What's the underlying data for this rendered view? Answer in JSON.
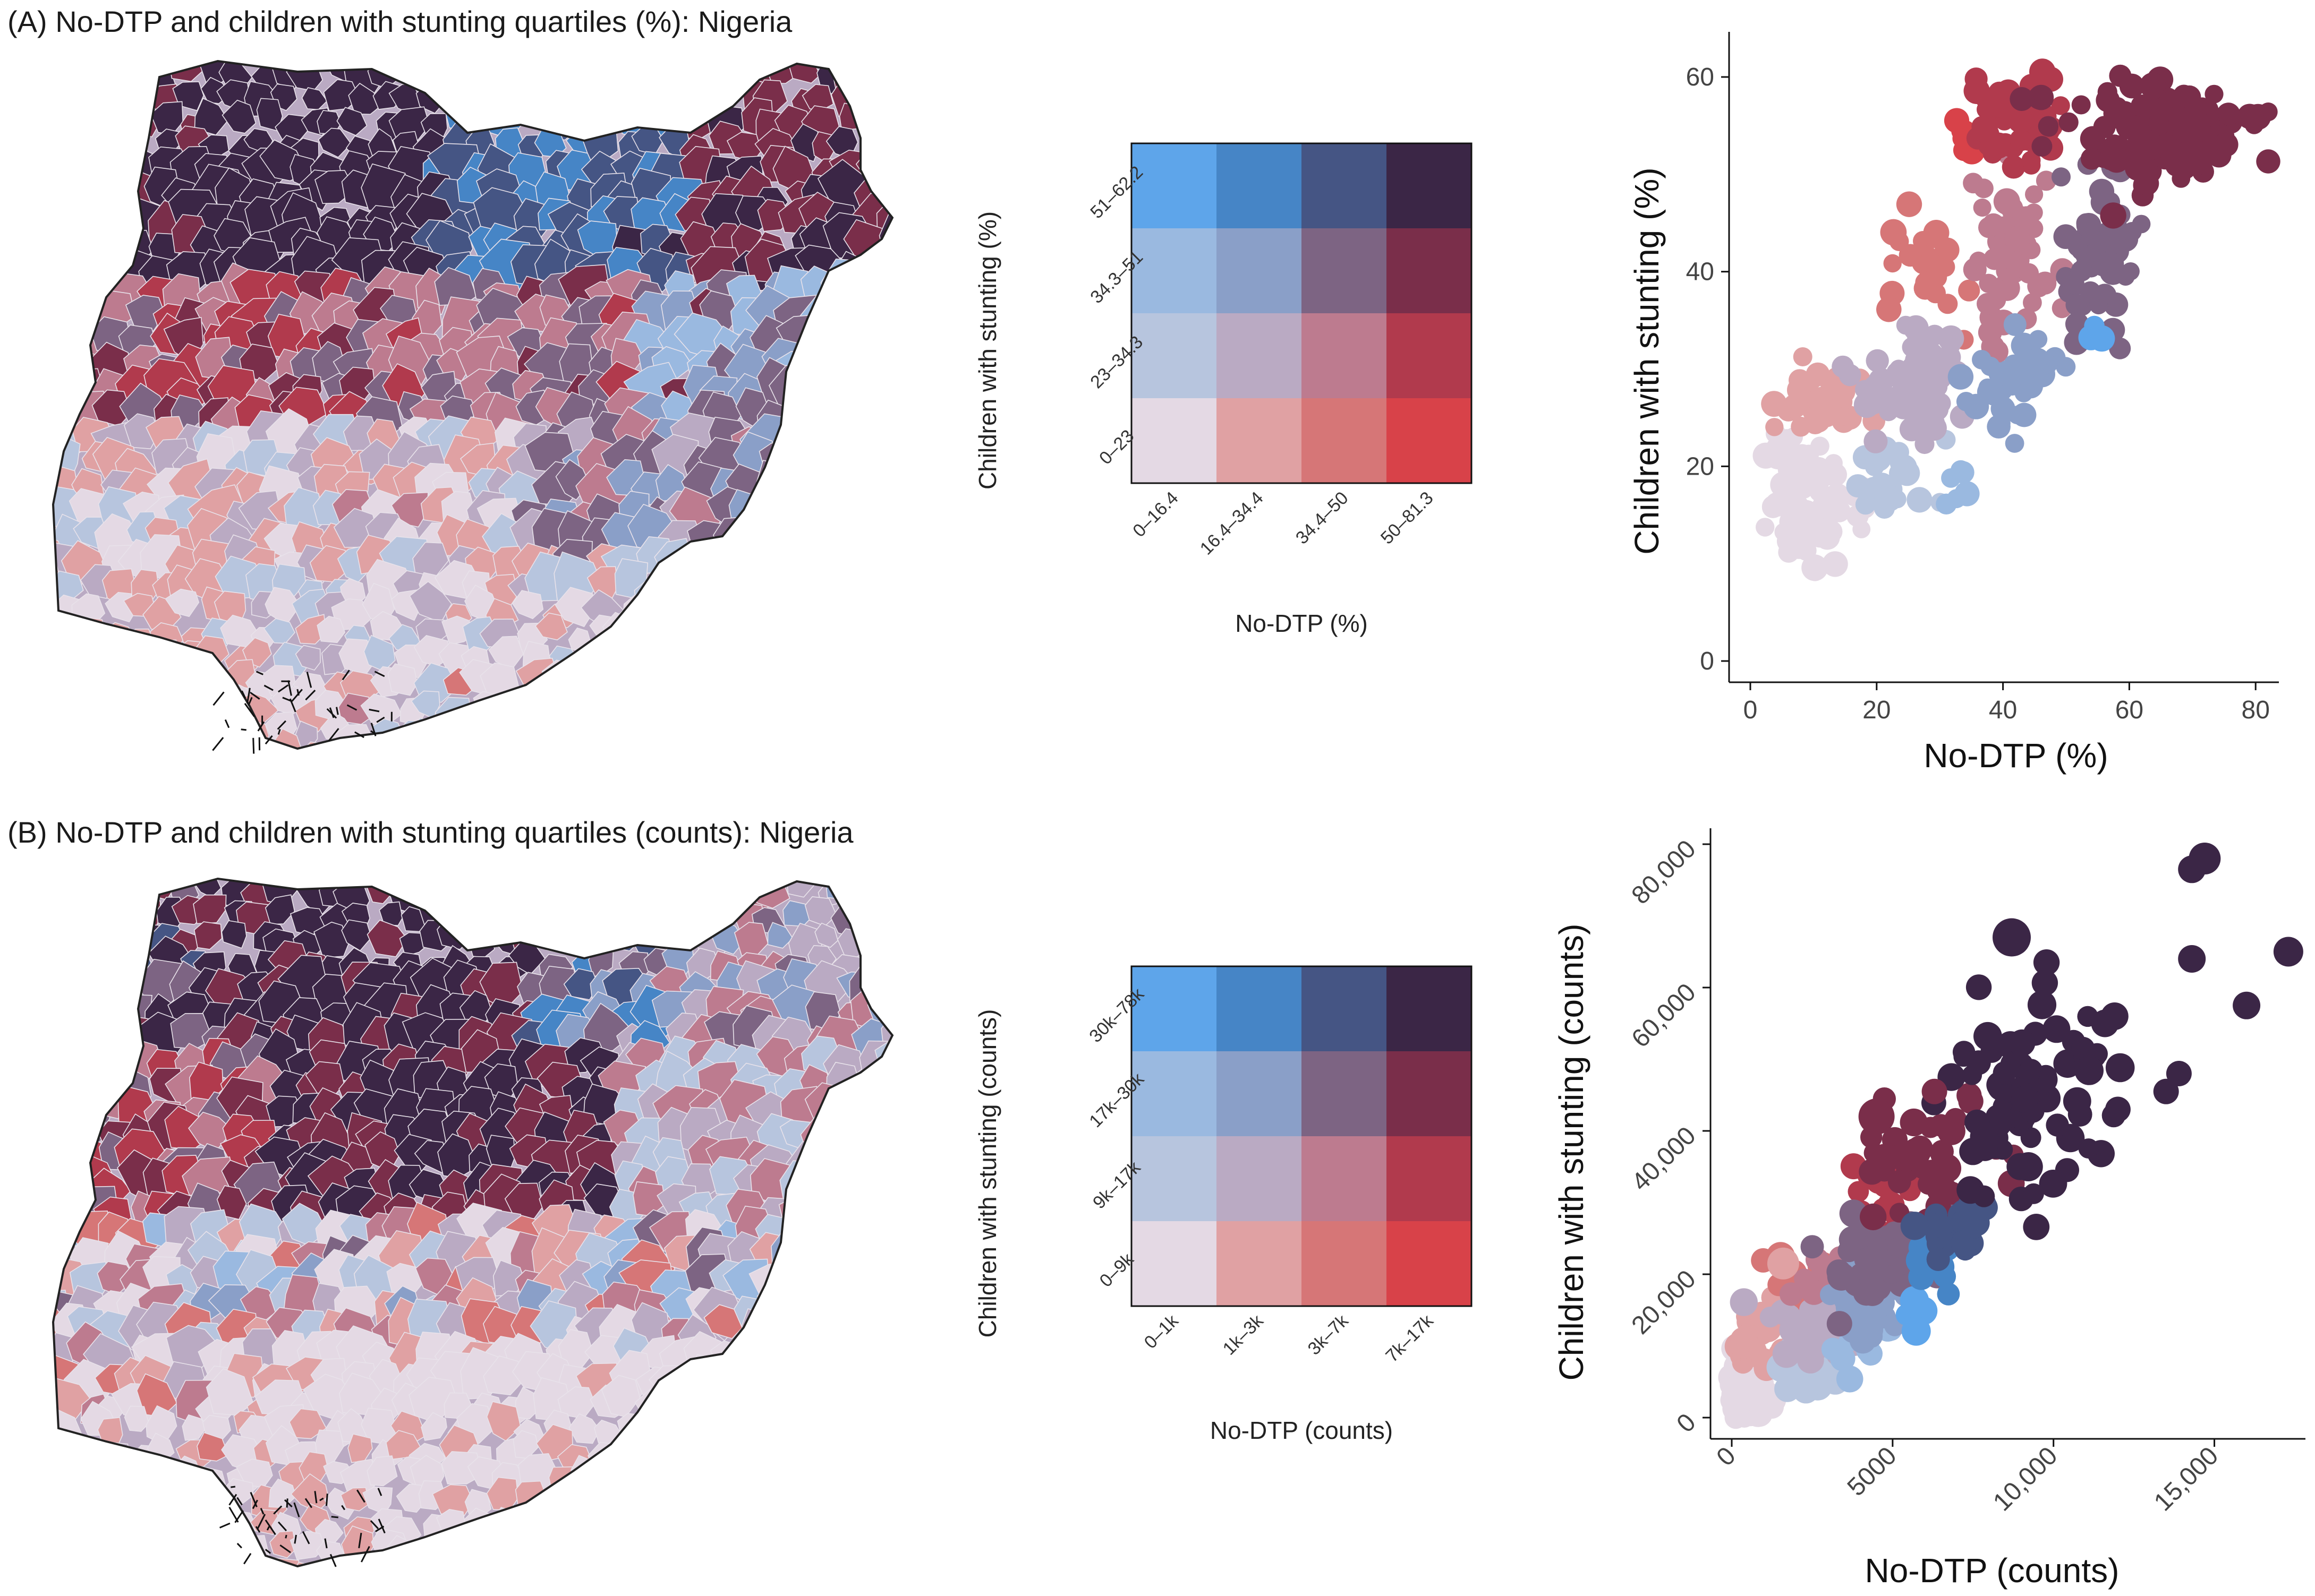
{
  "panel_a": {
    "title": "(A) No-DTP and children with stunting quartiles (%): Nigeria",
    "legend": {
      "xlabel": "No-DTP (%)",
      "ylabel": "Children with stunting  (%)",
      "x_bins": [
        "0–16.4",
        "16.4–34.4",
        "34.4–50",
        "50–81.3"
      ],
      "y_bins": [
        "0–23",
        "23–34.3",
        "34.3–51",
        "51–62.2"
      ]
    },
    "scatter": {
      "xlabel": "No-DTP (%)",
      "ylabel": "Children with stunting  (%)",
      "x_ticks": [
        "0",
        "20",
        "40",
        "60",
        "80"
      ],
      "y_ticks": [
        "0",
        "20",
        "40",
        "60"
      ]
    }
  },
  "panel_b": {
    "title": "(B) No-DTP and children with stunting quartiles (counts): Nigeria",
    "legend": {
      "xlabel": "No-DTP (counts)",
      "ylabel": "Children with stunting (counts)",
      "x_bins": [
        "0–1k",
        "1k–3k",
        "3k–7k",
        "7k–17k"
      ],
      "y_bins": [
        "0–9k",
        "9k–17k",
        "17k–30k",
        "30k–78k"
      ]
    },
    "scatter": {
      "xlabel": "No-DTP (counts)",
      "ylabel": "Children with stunting (counts)",
      "x_ticks": [
        "0",
        "5000",
        "10,000",
        "15,000"
      ],
      "y_ticks": [
        "0",
        "20,000",
        "40,000",
        "60,000",
        "80,000"
      ]
    }
  },
  "bivariate_palette": [
    [
      "#e4d9e4",
      "#e0a1a3",
      "#d67677",
      "#d84249"
    ],
    [
      "#b7c5de",
      "#baaac3",
      "#bd7b8f",
      "#b13a4d"
    ],
    [
      "#9ab9e0",
      "#8a9fc8",
      "#7d6483",
      "#7a2e4a"
    ],
    [
      "#5ea5ea",
      "#4685c6",
      "#455584",
      "#3b2646"
    ]
  ],
  "chart_data": [
    {
      "type": "scatter",
      "xlabel": "No-DTP (%)",
      "ylabel": "Children with stunting  (%)",
      "xlim": [
        0,
        82
      ],
      "ylim": [
        0,
        63
      ],
      "x_ticks": [
        0,
        20,
        40,
        60,
        80
      ],
      "y_ticks": [
        0,
        20,
        40,
        60
      ],
      "x_breaks": [
        16.4,
        34.4,
        50
      ],
      "y_breaks": [
        23,
        34.3,
        51
      ],
      "clusters": [
        {
          "class": [
            0,
            0
          ],
          "cx": 9,
          "cy": 16,
          "sx": 3.2,
          "sy": 3.2,
          "n": 70
        },
        {
          "class": [
            1,
            0
          ],
          "cx": 12,
          "cy": 26,
          "sx": 3,
          "sy": 1.8,
          "n": 40
        },
        {
          "class": [
            2,
            0
          ],
          "cx": 28,
          "cy": 40,
          "sx": 3,
          "sy": 3,
          "n": 25
        },
        {
          "class": [
            3,
            0
          ],
          "cx": 34,
          "cy": 54,
          "sx": 0.8,
          "sy": 1,
          "n": 6
        },
        {
          "class": [
            0,
            1
          ],
          "cx": 22,
          "cy": 19,
          "sx": 3,
          "sy": 2,
          "n": 25
        },
        {
          "class": [
            1,
            1
          ],
          "cx": 25,
          "cy": 28,
          "sx": 4,
          "sy": 2.8,
          "n": 70
        },
        {
          "class": [
            2,
            1
          ],
          "cx": 42,
          "cy": 42,
          "sx": 4,
          "sy": 4,
          "n": 55
        },
        {
          "class": [
            3,
            1
          ],
          "cx": 41,
          "cy": 56,
          "sx": 3.5,
          "sy": 2.5,
          "n": 45
        },
        {
          "class": [
            0,
            2
          ],
          "cx": 32,
          "cy": 18,
          "sx": 2,
          "sy": 1.5,
          "n": 6
        },
        {
          "class": [
            1,
            2
          ],
          "cx": 41,
          "cy": 29,
          "sx": 4,
          "sy": 2.5,
          "n": 35
        },
        {
          "class": [
            2,
            2
          ],
          "cx": 55,
          "cy": 40,
          "sx": 3,
          "sy": 4.5,
          "n": 50
        },
        {
          "class": [
            3,
            2
          ],
          "cx": 64,
          "cy": 54,
          "sx": 8,
          "sy": 2.6,
          "n": 130
        },
        {
          "class": [
            0,
            3
          ],
          "cx": 55,
          "cy": 34,
          "sx": 0.8,
          "sy": 0.6,
          "n": 4
        }
      ]
    },
    {
      "type": "scatter",
      "xlabel": "No-DTP (counts)",
      "ylabel": "Children with stunting (counts)",
      "xlim": [
        0,
        17500
      ],
      "ylim": [
        0,
        80000
      ],
      "x_ticks": [
        0,
        5000,
        10000,
        15000
      ],
      "y_ticks": [
        0,
        20000,
        40000,
        60000,
        80000
      ],
      "clusters": [
        {
          "class": [
            0,
            0
          ],
          "cx": 500,
          "cy": 3500,
          "sx": 350,
          "sy": 2500,
          "n": 60
        },
        {
          "class": [
            1,
            0
          ],
          "cx": 800,
          "cy": 12000,
          "sx": 400,
          "sy": 2500,
          "n": 25
        },
        {
          "class": [
            2,
            0
          ],
          "cx": 1900,
          "cy": 19000,
          "sx": 400,
          "sy": 2500,
          "n": 10
        },
        {
          "class": [
            0,
            1
          ],
          "cx": 2200,
          "cy": 7000,
          "sx": 500,
          "sy": 2000,
          "n": 25
        },
        {
          "class": [
            1,
            1
          ],
          "cx": 2600,
          "cy": 13000,
          "sx": 600,
          "sy": 2500,
          "n": 40
        },
        {
          "class": [
            2,
            1
          ],
          "cx": 3200,
          "cy": 20000,
          "sx": 500,
          "sy": 2200,
          "n": 25
        },
        {
          "class": [
            3,
            1
          ],
          "cx": 4800,
          "cy": 33000,
          "sx": 600,
          "sy": 3000,
          "n": 25
        },
        {
          "class": [
            0,
            2
          ],
          "cx": 3800,
          "cy": 10000,
          "sx": 500,
          "sy": 2200,
          "n": 10
        },
        {
          "class": [
            1,
            2
          ],
          "cx": 4200,
          "cy": 15000,
          "sx": 600,
          "sy": 2500,
          "n": 40
        },
        {
          "class": [
            2,
            2
          ],
          "cx": 4700,
          "cy": 23000,
          "sx": 900,
          "sy": 3000,
          "n": 60
        },
        {
          "class": [
            3,
            2
          ],
          "cx": 6300,
          "cy": 36000,
          "sx": 900,
          "sy": 5000,
          "n": 40
        },
        {
          "class": [
            0,
            3
          ],
          "cx": 5800,
          "cy": 14000,
          "sx": 400,
          "sy": 1500,
          "n": 4
        },
        {
          "class": [
            1,
            3
          ],
          "cx": 6200,
          "cy": 22000,
          "sx": 500,
          "sy": 2000,
          "n": 10
        },
        {
          "class": [
            2,
            3
          ],
          "cx": 6900,
          "cy": 27000,
          "sx": 600,
          "sy": 2200,
          "n": 20
        },
        {
          "class": [
            3,
            3
          ],
          "cx": 9300,
          "cy": 45000,
          "sx": 1500,
          "sy": 7000,
          "n": 80
        }
      ],
      "outliers": [
        {
          "x": 14700,
          "y": 78000,
          "class": [
            3,
            3
          ],
          "size": 30
        },
        {
          "x": 14300,
          "y": 76500,
          "class": [
            3,
            3
          ],
          "size": 26
        },
        {
          "x": 8700,
          "y": 67000,
          "class": [
            3,
            3
          ],
          "size": 36
        },
        {
          "x": 17300,
          "y": 65000,
          "class": [
            3,
            3
          ],
          "size": 28
        },
        {
          "x": 14300,
          "y": 64000,
          "class": [
            3,
            3
          ],
          "size": 26
        },
        {
          "x": 16000,
          "y": 57500,
          "class": [
            3,
            3
          ],
          "size": 26
        },
        {
          "x": 11600,
          "y": 55000,
          "class": [
            3,
            3
          ],
          "size": 26
        },
        {
          "x": 11900,
          "y": 56000,
          "class": [
            3,
            3
          ],
          "size": 26
        },
        {
          "x": 4500,
          "y": 42000,
          "class": [
            3,
            2
          ],
          "size": 34
        },
        {
          "x": 13900,
          "y": 48000,
          "class": [
            3,
            3
          ],
          "size": 24
        },
        {
          "x": 13500,
          "y": 45500,
          "class": [
            3,
            3
          ],
          "size": 24
        },
        {
          "x": 12000,
          "y": 43000,
          "class": [
            3,
            3
          ],
          "size": 24
        },
        {
          "x": 6300,
          "y": 45500,
          "class": [
            3,
            2
          ],
          "size": 24
        },
        {
          "x": 1600,
          "y": 21500,
          "class": [
            1,
            0
          ],
          "size": 30
        }
      ]
    }
  ]
}
